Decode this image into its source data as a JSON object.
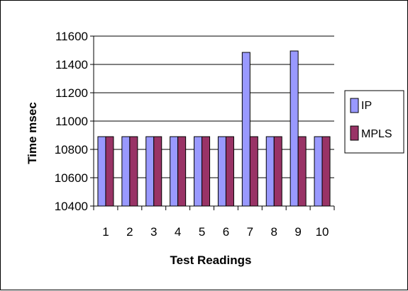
{
  "chart_data": {
    "type": "bar",
    "title": "",
    "xlabel": "Test Readings",
    "ylabel": "Time msec",
    "categories": [
      "1",
      "2",
      "3",
      "4",
      "5",
      "6",
      "7",
      "8",
      "9",
      "10"
    ],
    "series": [
      {
        "name": "IP",
        "color": "#9999ff",
        "values": [
          10890,
          10890,
          10890,
          10890,
          10890,
          10890,
          11485,
          10890,
          11495,
          10890
        ]
      },
      {
        "name": "MPLS",
        "color": "#993366",
        "values": [
          10890,
          10890,
          10890,
          10890,
          10890,
          10890,
          10890,
          10890,
          10890,
          10890
        ]
      }
    ],
    "ylim": [
      10400,
      11600
    ],
    "yticks": [
      10400,
      10600,
      10800,
      11000,
      11200,
      11400,
      11600
    ],
    "grid": true,
    "legend_position": "right"
  }
}
